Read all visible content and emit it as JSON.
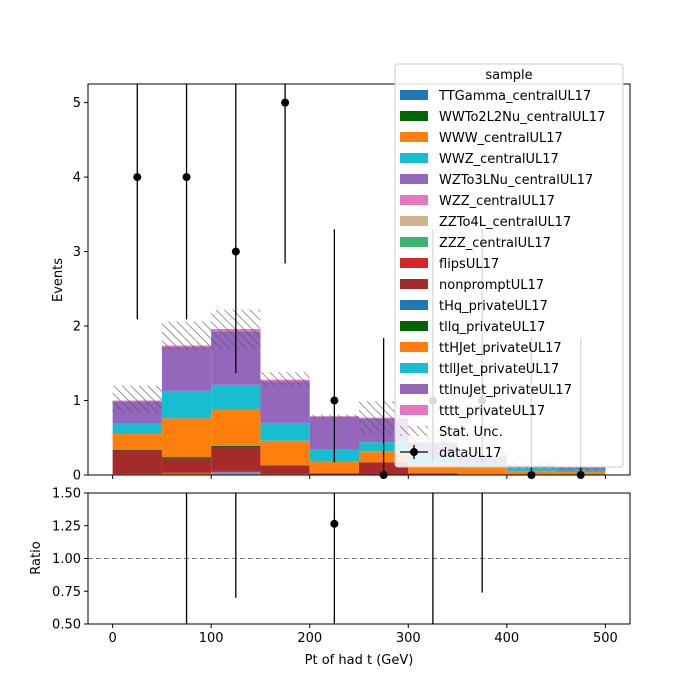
{
  "chart_data": [
    {
      "type": "bar",
      "stacked": true,
      "xlabel": "",
      "ylabel": "Events",
      "xlim": [
        -25,
        525
      ],
      "ylim": [
        0,
        5.25
      ],
      "xticks": [
        0,
        100,
        200,
        300,
        400,
        500
      ],
      "yticks": [
        0,
        1,
        2,
        3,
        4,
        5
      ],
      "bin_edges": [
        0,
        50,
        100,
        150,
        200,
        250,
        300,
        350,
        400,
        450,
        500
      ],
      "legend": {
        "title": "sample",
        "placement": "top-right",
        "entries": [
          {
            "label": "TTGamma_centralUL17",
            "color": "#1f77b4",
            "kind": "patch"
          },
          {
            "label": "WWTo2L2Nu_centralUL17",
            "color": "#006400",
            "kind": "patch"
          },
          {
            "label": "WWW_centralUL17",
            "color": "#ff7f0e",
            "kind": "patch"
          },
          {
            "label": "WWZ_centralUL17",
            "color": "#17becf",
            "kind": "patch"
          },
          {
            "label": "WZTo3LNu_centralUL17",
            "color": "#9467bd",
            "kind": "patch"
          },
          {
            "label": "WZZ_centralUL17",
            "color": "#e377c2",
            "kind": "patch"
          },
          {
            "label": "ZZTo4L_centralUL17",
            "color": "#d2b48c",
            "kind": "patch"
          },
          {
            "label": "ZZZ_centralUL17",
            "color": "#3cb371",
            "kind": "patch"
          },
          {
            "label": "flipsUL17",
            "color": "#d62728",
            "kind": "patch"
          },
          {
            "label": "nonpromptUL17",
            "color": "#a52a2a",
            "kind": "patch"
          },
          {
            "label": "tHq_privateUL17",
            "color": "#1f77b4",
            "kind": "patch"
          },
          {
            "label": "tllq_privateUL17",
            "color": "#006400",
            "kind": "patch"
          },
          {
            "label": "ttHJet_privateUL17",
            "color": "#ff7f0e",
            "kind": "patch"
          },
          {
            "label": "ttllJet_privateUL17",
            "color": "#17becf",
            "kind": "patch"
          },
          {
            "label": "ttlnuJet_privateUL17",
            "color": "#9467bd",
            "kind": "patch"
          },
          {
            "label": "tttt_privateUL17",
            "color": "#e377c2",
            "kind": "patch"
          },
          {
            "label": "Stat. Unc.",
            "color": "#888888",
            "kind": "hatch"
          },
          {
            "label": "dataUL17",
            "color": "#000000",
            "kind": "errorbar"
          }
        ]
      },
      "series": [
        {
          "name": "TTGamma_centralUL17",
          "color": "#1f77b4",
          "values": [
            0,
            0,
            0,
            0,
            0,
            0,
            0,
            0,
            0,
            0
          ]
        },
        {
          "name": "WWTo2L2Nu_centralUL17",
          "color": "#006400",
          "values": [
            0,
            0,
            0,
            0,
            0,
            0,
            0,
            0,
            0,
            0
          ]
        },
        {
          "name": "WWW_centralUL17",
          "color": "#ff7f0e",
          "values": [
            0.01,
            0.02,
            0.01,
            0.01,
            0,
            0,
            0,
            0,
            0,
            0
          ]
        },
        {
          "name": "WWZ_centralUL17",
          "color": "#17becf",
          "values": [
            0,
            0,
            0.02,
            0,
            0,
            0,
            0,
            0,
            0,
            0
          ]
        },
        {
          "name": "WZTo3LNu_centralUL17",
          "color": "#9467bd",
          "values": [
            0,
            0,
            0.01,
            0,
            0,
            0,
            0,
            0,
            0,
            0
          ]
        },
        {
          "name": "WZZ_centralUL17",
          "color": "#e377c2",
          "values": [
            0,
            0,
            0,
            0,
            0,
            0,
            0,
            0,
            0,
            0
          ]
        },
        {
          "name": "ZZTo4L_centralUL17",
          "color": "#d2b48c",
          "values": [
            0,
            0,
            0,
            0,
            0,
            0,
            0,
            0,
            0,
            0
          ]
        },
        {
          "name": "ZZZ_centralUL17",
          "color": "#3cb371",
          "values": [
            0,
            0,
            0,
            0,
            0,
            0,
            0,
            0,
            0,
            0
          ]
        },
        {
          "name": "flipsUL17",
          "color": "#d62728",
          "values": [
            0.01,
            0.01,
            0.02,
            0.01,
            0,
            0.02,
            0,
            0,
            0,
            0
          ]
        },
        {
          "name": "nonpromptUL17",
          "color": "#a52a2a",
          "values": [
            0.31,
            0.19,
            0.31,
            0.1,
            0.02,
            0.15,
            0.02,
            0,
            0,
            0
          ]
        },
        {
          "name": "tHq_privateUL17",
          "color": "#1f77b4",
          "values": [
            0,
            0,
            0,
            0,
            0,
            0,
            0,
            0,
            0,
            0
          ]
        },
        {
          "name": "tllq_privateUL17",
          "color": "#006400",
          "values": [
            0.01,
            0.02,
            0.02,
            0.01,
            0,
            0,
            0,
            0,
            0,
            0
          ]
        },
        {
          "name": "ttHJet_privateUL17",
          "color": "#ff7f0e",
          "values": [
            0.21,
            0.52,
            0.49,
            0.33,
            0.16,
            0.15,
            0.14,
            0.1,
            0.05,
            0.04
          ]
        },
        {
          "name": "ttllJet_privateUL17",
          "color": "#17becf",
          "values": [
            0.14,
            0.37,
            0.33,
            0.24,
            0.16,
            0.12,
            0.1,
            0.06,
            0.04,
            0.03
          ]
        },
        {
          "name": "ttlnuJet_privateUL17",
          "color": "#9467bd",
          "values": [
            0.3,
            0.59,
            0.72,
            0.56,
            0.44,
            0.32,
            0.17,
            0.09,
            0.04,
            0.03
          ]
        },
        {
          "name": "tttt_privateUL17",
          "color": "#e377c2",
          "values": [
            0.01,
            0.02,
            0.03,
            0.02,
            0.01,
            0.01,
            0.01,
            0,
            0,
            0
          ]
        }
      ],
      "stat_unc": [
        [
          0.83,
          1.2
        ],
        [
          1.68,
          2.06
        ],
        [
          1.68,
          2.22
        ],
        [
          1.19,
          1.38
        ],
        [
          0.77,
          0.81
        ],
        [
          0.55,
          0.99
        ],
        [
          0.26,
          0.62
        ],
        [
          0.17,
          0.32
        ],
        [
          0.08,
          0.18
        ],
        [
          0.06,
          0.12
        ]
      ],
      "data": {
        "name": "dataUL17",
        "x": [
          25,
          75,
          125,
          175,
          225,
          275,
          325,
          375,
          425,
          475
        ],
        "y": [
          4,
          4,
          3,
          5,
          1,
          0,
          1,
          1,
          0,
          0
        ],
        "yerr_low": [
          1.91,
          1.91,
          1.63,
          2.16,
          0.83,
          0,
          0.83,
          0.83,
          0,
          0
        ],
        "yerr_high": [
          3.16,
          3.16,
          2.92,
          3.38,
          2.3,
          1.84,
          2.3,
          2.3,
          1.84,
          1.84
        ]
      }
    },
    {
      "type": "scatter",
      "xlabel": "Pt of had t (GeV)",
      "ylabel": "Ratio",
      "xlim": [
        -25,
        525
      ],
      "ylim": [
        0.5,
        1.5
      ],
      "xticks": [
        0,
        100,
        200,
        300,
        400,
        500
      ],
      "yticks": [
        0.5,
        0.75,
        1.0,
        1.25,
        1.5
      ],
      "ytick_labels": [
        "0.50",
        "0.75",
        "1.00",
        "1.25",
        "1.50"
      ],
      "reference_line": 1.0,
      "ratio": {
        "x": [
          25,
          75,
          125,
          175,
          225,
          275,
          325,
          375,
          425,
          475
        ],
        "y": [
          null,
          null,
          null,
          null,
          1.265,
          null,
          null,
          null,
          null,
          null
        ],
        "err_low": [
          null,
          0.5,
          0.7,
          null,
          0.5,
          null,
          0.5,
          0.74,
          null,
          null
        ],
        "err_high": [
          null,
          1.5,
          1.5,
          null,
          1.5,
          null,
          1.5,
          1.5,
          null,
          null
        ]
      }
    }
  ]
}
